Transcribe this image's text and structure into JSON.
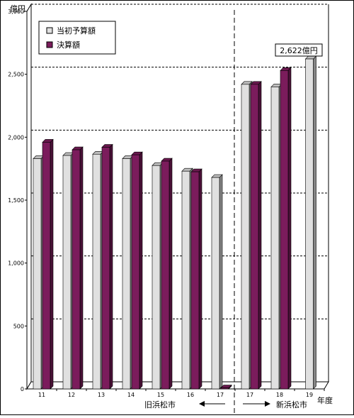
{
  "chart_data": {
    "type": "bar",
    "unit_label": "億円",
    "xlabel": "年度",
    "categories": [
      "11",
      "12",
      "13",
      "14",
      "15",
      "16",
      "17",
      "17",
      "18",
      "19"
    ],
    "series": [
      {
        "name": "当初予算額",
        "color": "#e0e0e0",
        "values": [
          1830,
          1855,
          1865,
          1830,
          1775,
          1730,
          1680,
          2420,
          2400,
          2622
        ]
      },
      {
        "name": "決算額",
        "color": "#7b1c5c",
        "values": [
          1960,
          1900,
          1920,
          1860,
          1810,
          1725,
          8,
          2420,
          2530,
          null
        ]
      }
    ],
    "ylim": [
      0,
      3000
    ],
    "yticks": [
      0,
      500,
      1000,
      1500,
      2000,
      2500,
      3000
    ],
    "ytick_labels": [
      "0",
      "500",
      "1,000",
      "1,500",
      "2,000",
      "2,500",
      "3,000"
    ],
    "annotation": "2,622億円",
    "group_labels": {
      "old_city": "旧浜松市",
      "new_city": "新浜松市"
    },
    "legend_position": "top-left",
    "grid": "dashed horizontal"
  }
}
